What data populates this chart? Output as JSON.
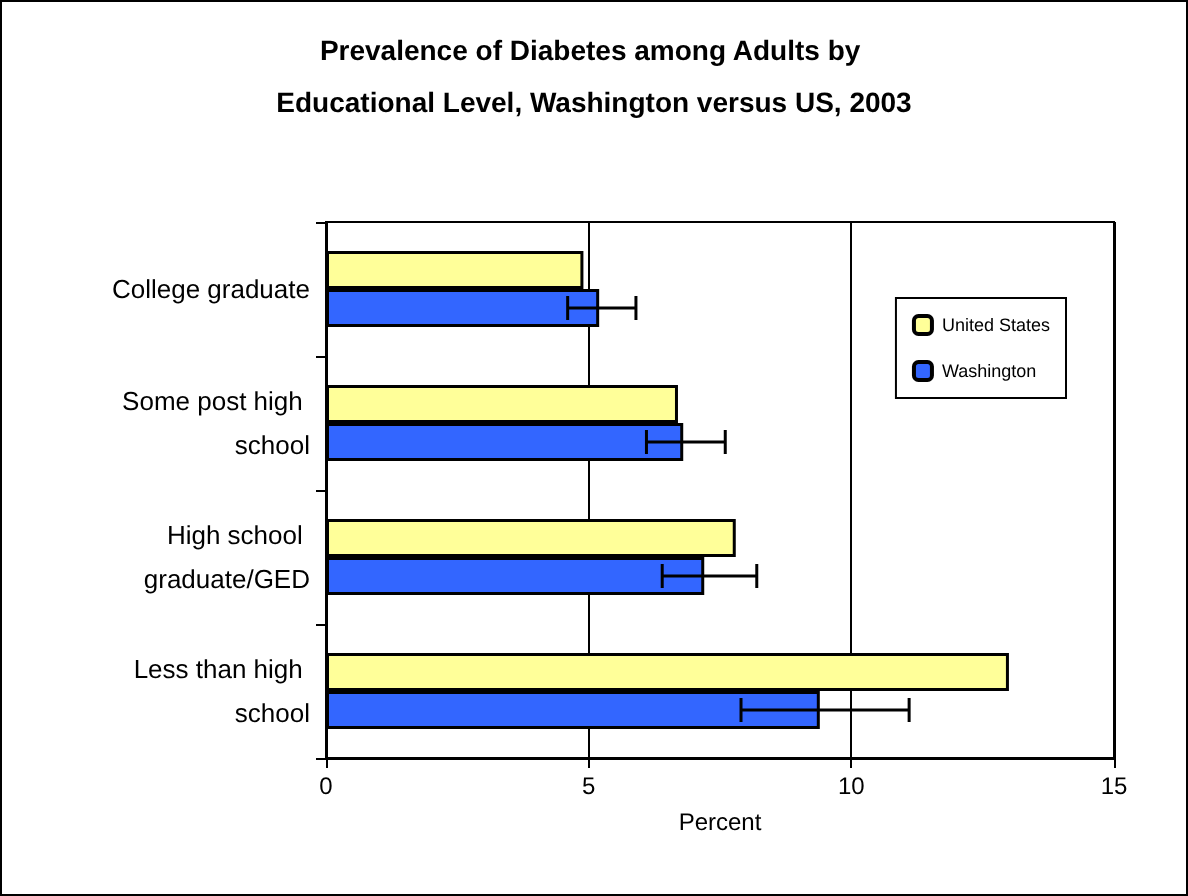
{
  "chart_data": {
    "type": "bar",
    "orientation": "horizontal",
    "title": "Prevalence of Diabetes among Adults by Educational Level, Washington versus US, 2003",
    "xlabel": "Percent",
    "categories": [
      "College graduate",
      "Some post high school",
      "High school graduate/GED",
      "Less than high school"
    ],
    "series": [
      {
        "name": "United States",
        "color": "#ffff99",
        "values": [
          4.9,
          6.7,
          7.8,
          13.0
        ]
      },
      {
        "name": "Washington",
        "color": "#3366ff",
        "values": [
          5.2,
          6.8,
          7.2,
          9.4
        ],
        "errors": [
          [
            4.6,
            5.9
          ],
          [
            6.1,
            7.6
          ],
          [
            6.4,
            8.2
          ],
          [
            7.9,
            11.1
          ]
        ]
      }
    ],
    "xlim": [
      0,
      15
    ],
    "xticks": [
      0,
      5,
      10,
      15
    ],
    "grid": "x",
    "legend": "right"
  }
}
